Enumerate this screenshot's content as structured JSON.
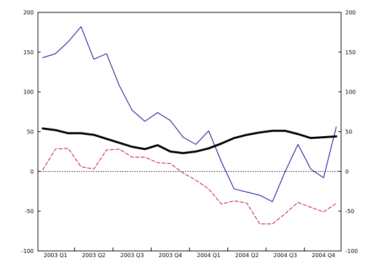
{
  "chart_data": {
    "type": "line",
    "title": "",
    "xlabel": "",
    "ylabel": "",
    "ylim": [
      -100,
      200
    ],
    "y_ticks": [
      -100,
      -50,
      0,
      50,
      100,
      150,
      200
    ],
    "y_ticks_right": [
      -100,
      -50,
      0,
      50,
      100,
      150,
      200
    ],
    "quarter_labels": [
      "2003 Q1",
      "2003 Q2",
      "2003 Q3",
      "2003 Q4",
      "2004 Q1",
      "2004 Q2",
      "2004 Q3",
      "2004 Q4"
    ],
    "months_per_quarter": 3,
    "reference_line": {
      "y": 0,
      "style": "dotted",
      "color": "#000000"
    },
    "grid": false,
    "legend": "none",
    "series": [
      {
        "color": "#00008b",
        "style": "thin-solid",
        "values": [
          143,
          148,
          163,
          182,
          141,
          148,
          108,
          77,
          63,
          74,
          64,
          43,
          34,
          51,
          12,
          -22,
          -26,
          -30,
          -38,
          0,
          34,
          3,
          -8,
          56
        ]
      },
      {
        "color": "#000000",
        "style": "thick-solid",
        "values": [
          54,
          52,
          48,
          48,
          46,
          41,
          36,
          31,
          28,
          33,
          25,
          23,
          25,
          29,
          35,
          42,
          46,
          49,
          51,
          51,
          47,
          42,
          43,
          44
        ]
      },
      {
        "color": "#c0003c",
        "style": "dashed",
        "values": [
          2,
          28,
          29,
          6,
          3,
          27,
          28,
          18,
          18,
          11,
          10,
          -2,
          -11,
          -22,
          -41,
          -37,
          -40,
          -66,
          -66,
          -53,
          -39,
          -45,
          -51,
          -40
        ]
      }
    ]
  }
}
